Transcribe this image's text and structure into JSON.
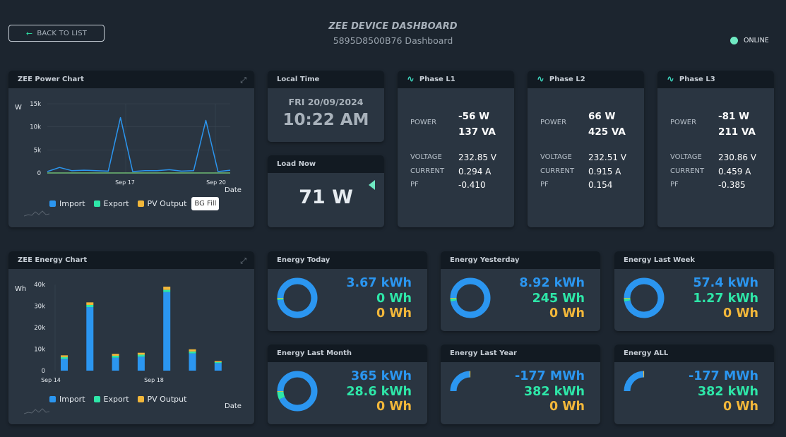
{
  "header": {
    "back_label": "BACK TO LIST",
    "title": "ZEE DEVICE DASHBOARD",
    "subtitle": "5895D8500B76 Dashboard",
    "status": "ONLINE"
  },
  "colors": {
    "import": "#2b96f0",
    "export": "#2ee6a8",
    "pv_output": "#f2b73a",
    "online": "#6fe9c2"
  },
  "power_chart": {
    "title": "ZEE Power Chart",
    "unit_label": "W",
    "x_axis_label": "Date",
    "legend": [
      "Import",
      "Export",
      "PV Output"
    ],
    "bg_fill_label": "BG Fill"
  },
  "energy_chart": {
    "title": "ZEE Energy Chart",
    "unit_label": "Wh",
    "x_axis_label": "Date",
    "legend": [
      "Import",
      "Export",
      "PV Output"
    ]
  },
  "chart_data": [
    {
      "type": "line",
      "title": "ZEE Power Chart",
      "ylabel": "W",
      "xlabel": "Date",
      "ylim": [
        0,
        15000
      ],
      "y_ticks": [
        "0",
        "5k",
        "10k",
        "15k"
      ],
      "x_ticks": [
        "Sep 17",
        "Sep 20"
      ],
      "grid": true,
      "legend": "bottom",
      "series": [
        {
          "name": "Import",
          "color": "#2b96f0",
          "x": [
            "Sep 14",
            "Sep 14.5",
            "Sep 15",
            "Sep 15.5",
            "Sep 16",
            "Sep 16.5",
            "Sep 16.8",
            "Sep 17",
            "Sep 17.5",
            "Sep 18",
            "Sep 18.5",
            "Sep 19",
            "Sep 19.5",
            "Sep 19.8",
            "Sep 20",
            "Sep 20.5"
          ],
          "values": [
            300,
            1200,
            500,
            600,
            500,
            400,
            12000,
            300,
            500,
            500,
            700,
            400,
            500,
            11400,
            300,
            600
          ]
        },
        {
          "name": "Export",
          "color": "#2ee6a8",
          "values": [
            0,
            0,
            0,
            0,
            0,
            0,
            0,
            0,
            0,
            0,
            0,
            0,
            0,
            0,
            0,
            0
          ]
        },
        {
          "name": "PV Output",
          "color": "#f2b73a",
          "values": [
            0,
            0,
            0,
            0,
            0,
            0,
            0,
            0,
            0,
            0,
            0,
            0,
            0,
            0,
            0,
            0
          ]
        }
      ]
    },
    {
      "type": "bar",
      "title": "ZEE Energy Chart",
      "ylabel": "Wh",
      "xlabel": "Date",
      "ylim": [
        0,
        40000
      ],
      "y_ticks": [
        "0",
        "10k",
        "20k",
        "30k",
        "40k"
      ],
      "x_ticks": [
        "Sep 14",
        "Sep 18"
      ],
      "categories": [
        "Sep 14",
        "Sep 15",
        "Sep 16",
        "Sep 17",
        "Sep 18",
        "Sep 19",
        "Sep 20"
      ],
      "legend": "bottom",
      "series": [
        {
          "name": "Import",
          "color": "#2b96f0",
          "values": [
            5500,
            29500,
            6000,
            6500,
            36500,
            8000,
            3500
          ]
        },
        {
          "name": "Export",
          "color": "#2ee6a8",
          "values": [
            800,
            1000,
            900,
            900,
            1000,
            900,
            500
          ]
        },
        {
          "name": "PV Output",
          "color": "#f2b73a",
          "values": [
            800,
            1200,
            900,
            900,
            1500,
            1000,
            500
          ]
        }
      ]
    }
  ],
  "local_time": {
    "title": "Local Time",
    "date": "FRI 20/09/2024",
    "time": "10:22 AM"
  },
  "load_now": {
    "title": "Load Now",
    "value": "71 W"
  },
  "phases": [
    {
      "title": "Phase L1",
      "power_label": "POWER",
      "power_w": "-56 W",
      "power_va": "137 VA",
      "voltage_label": "VOLTAGE",
      "voltage": "232.85 V",
      "current_label": "CURRENT",
      "current": "0.294 A",
      "pf_label": "PF",
      "pf": "-0.410"
    },
    {
      "title": "Phase L2",
      "power_label": "POWER",
      "power_w": "66 W",
      "power_va": "425 VA",
      "voltage_label": "VOLTAGE",
      "voltage": "232.51 V",
      "current_label": "CURRENT",
      "current": "0.915 A",
      "pf_label": "PF",
      "pf": "0.154"
    },
    {
      "title": "Phase L3",
      "power_label": "POWER",
      "power_w": "-81 W",
      "power_va": "211 VA",
      "voltage_label": "VOLTAGE",
      "voltage": "230.86 V",
      "current_label": "CURRENT",
      "current": "0.459 A",
      "pf_label": "PF",
      "pf": "-0.385"
    }
  ],
  "energy": [
    {
      "title": "Energy Today",
      "import": "3.67 kWh",
      "export": "0 Wh",
      "pv": "0 Wh",
      "ring_fraction": 1.0,
      "export_share": 0.02
    },
    {
      "title": "Energy Yesterday",
      "import": "8.92 kWh",
      "export": "245 Wh",
      "pv": "0 Wh",
      "ring_fraction": 1.0,
      "export_share": 0.03
    },
    {
      "title": "Energy Last Week",
      "import": "57.4 kWh",
      "export": "1.27 kWh",
      "pv": "0 Wh",
      "ring_fraction": 1.0,
      "export_share": 0.03
    },
    {
      "title": "Energy Last Month",
      "import": "365 kWh",
      "export": "28.6 kWh",
      "pv": "0 Wh",
      "ring_fraction": 1.0,
      "export_share": 0.07
    },
    {
      "title": "Energy Last Year",
      "import": "-177 MWh",
      "export": "382 kWh",
      "pv": "0 Wh",
      "ring_fraction": 0.25,
      "export_share": 0.01
    },
    {
      "title": "Energy ALL",
      "import": "-177 MWh",
      "export": "382 kWh",
      "pv": "0 Wh",
      "ring_fraction": 0.25,
      "export_share": 0.01
    }
  ]
}
